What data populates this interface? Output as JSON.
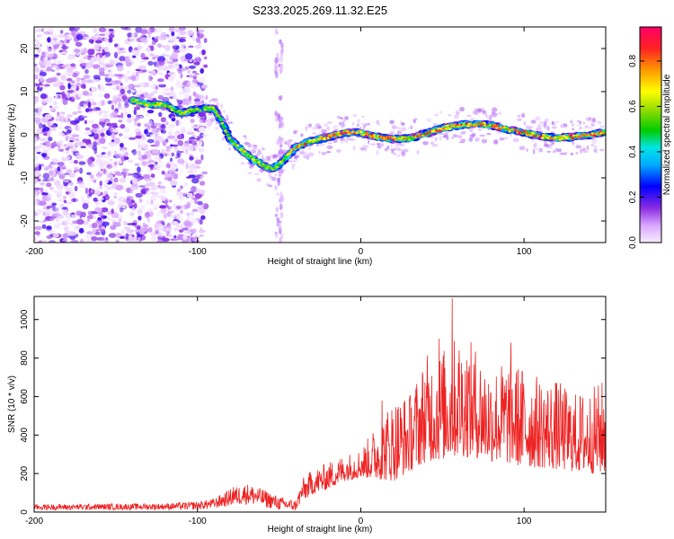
{
  "figure": {
    "title": "S233.2025.269.11.32.E25"
  },
  "chart_data": [
    {
      "type": "heatmap",
      "name": "spectrogram",
      "xlabel": "Height of straight line (km)",
      "ylabel": "Frequency (Hz)",
      "xlim": [
        -200,
        150
      ],
      "ylim": [
        -25,
        25
      ],
      "xticks": [
        -200,
        -100,
        0,
        100
      ],
      "yticks": [
        -20,
        -10,
        0,
        10,
        20
      ],
      "colorbar": {
        "label": "Normalized spectral amplitude",
        "range": [
          0.0,
          0.95
        ],
        "ticks": [
          0.0,
          0.2,
          0.4,
          0.6,
          0.8
        ]
      },
      "ridge": {
        "x": [
          -96,
          -90,
          -85,
          -80,
          -75,
          -70,
          -65,
          -60,
          -55,
          -50,
          -45,
          -40,
          -35,
          -30,
          -20,
          -10,
          0,
          10,
          20,
          30,
          40,
          50,
          60,
          70,
          80,
          90,
          100,
          110,
          120,
          130,
          140,
          150
        ],
        "y": [
          6,
          6,
          3,
          -1,
          -3,
          -4.5,
          -6,
          -7,
          -8,
          -7,
          -5,
          -3,
          -2,
          -1.5,
          -0.5,
          0.5,
          0.5,
          -0.5,
          -1,
          -0.8,
          0.3,
          1.5,
          2.2,
          2.5,
          2.2,
          1.2,
          0.5,
          -0.3,
          -0.8,
          -0.5,
          0,
          0.5
        ]
      },
      "secondary_ridge": {
        "x": [
          -140,
          -130,
          -120,
          -110,
          -100,
          -96
        ],
        "y": [
          8,
          7,
          7,
          5,
          6,
          6
        ]
      },
      "noise_region_x": [
        -200,
        -95
      ]
    },
    {
      "type": "line",
      "name": "snr",
      "xlabel": "Height of straight line (km)",
      "ylabel": "SNR (10 * v/v)",
      "xlim": [
        -200,
        150
      ],
      "ylim": [
        0,
        1120
      ],
      "xticks": [
        -200,
        -100,
        0,
        100
      ],
      "yticks": [
        0,
        200,
        400,
        600,
        800,
        1000
      ],
      "color": "#ee2222",
      "envelope": {
        "x": [
          -200,
          -120,
          -100,
          -90,
          -80,
          -70,
          -60,
          -50,
          -40,
          -35,
          -30,
          -20,
          -10,
          0,
          10,
          20,
          30,
          40,
          50,
          60,
          70,
          80,
          90,
          100,
          110,
          120,
          130,
          140,
          150
        ],
        "low": [
          10,
          12,
          12,
          18,
          30,
          40,
          25,
          10,
          5,
          60,
          90,
          120,
          160,
          180,
          170,
          160,
          210,
          260,
          270,
          290,
          280,
          260,
          250,
          230,
          230,
          220,
          210,
          200,
          200
        ],
        "high": [
          40,
          45,
          55,
          70,
          120,
          150,
          120,
          80,
          60,
          180,
          220,
          260,
          300,
          330,
          460,
          600,
          620,
          820,
          850,
          930,
          870,
          760,
          800,
          760,
          700,
          690,
          620,
          640,
          700
        ]
      },
      "peaks": [
        {
          "x": -78,
          "y": 130
        },
        {
          "x": 13,
          "y": 580
        },
        {
          "x": 56,
          "y": 1110
        },
        {
          "x": 48,
          "y": 900
        },
        {
          "x": 92,
          "y": 880
        }
      ]
    }
  ]
}
